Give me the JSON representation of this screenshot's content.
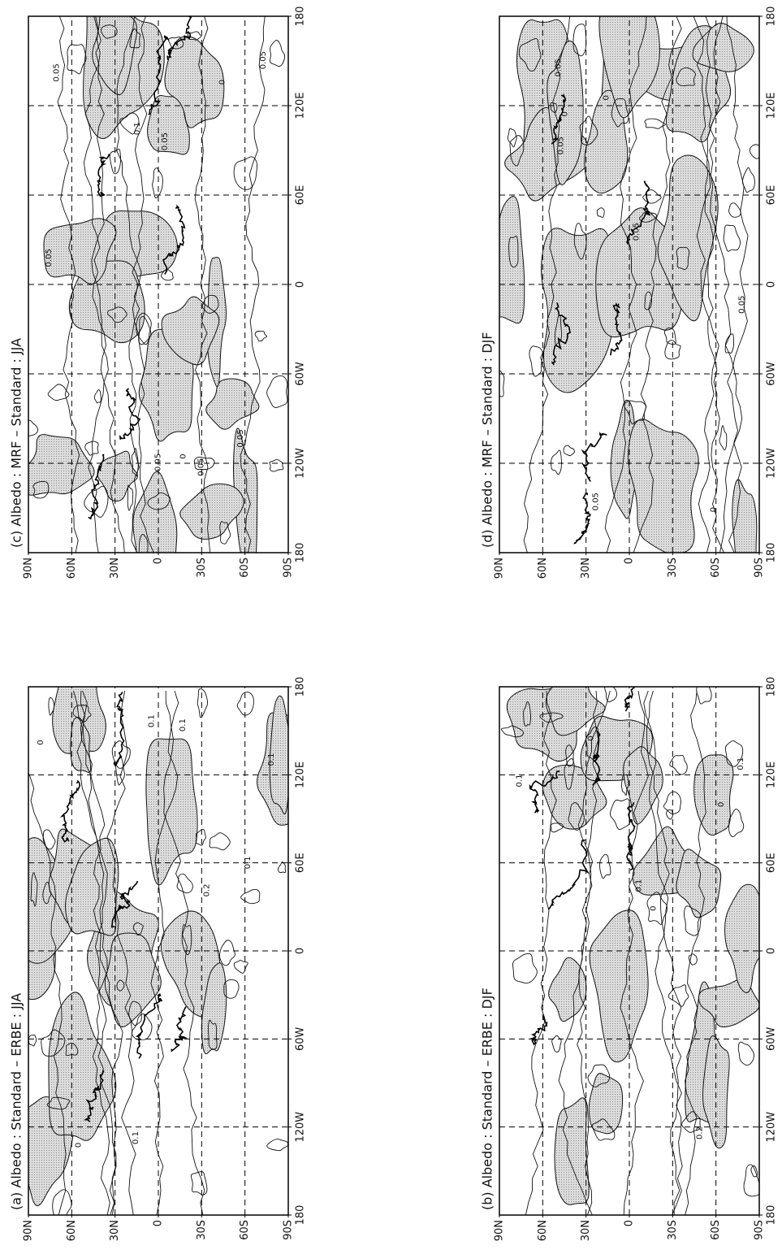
{
  "panels": [
    {
      "title": "(c) Albedo : MRF – Standard : JJA",
      "lat_labels": [
        "90N",
        "60N",
        "30N",
        "0",
        "30S",
        "60S",
        "90S"
      ],
      "lon_labels": [
        "180",
        "120W",
        "60W",
        "0",
        "60E",
        "120E",
        "180"
      ],
      "contour_labels": [
        "0.05",
        "0.05",
        "0.05",
        "0",
        "0.05",
        "0.05",
        "0.05",
        "0.05",
        "0",
        "0.1"
      ]
    },
    {
      "title": "(d) Albedo : MRF – Standard : DJF",
      "lat_labels": [
        "90N",
        "60N",
        "30N",
        "0",
        "30S",
        "60S",
        "90S"
      ],
      "lon_labels": [
        "180",
        "120W",
        "60W",
        "0",
        "60E",
        "120E",
        "180"
      ],
      "contour_labels": [
        "0",
        "0.05",
        "0.05",
        "0.05",
        "0",
        "0",
        "0.05",
        "0.05"
      ]
    },
    {
      "title": "(a) Albedo : Standard – ERBE : JJA",
      "lat_labels": [
        "90N",
        "60N",
        "30N",
        "0",
        "30S",
        "60S",
        "90S"
      ],
      "lon_labels": [
        "180",
        "120W",
        "60W",
        "0",
        "60E",
        "120E",
        "180"
      ],
      "contour_labels": [
        "0.1",
        "0.2",
        "0.1",
        "0.1",
        "0.1",
        "0",
        "0.1",
        "0"
      ]
    },
    {
      "title": "(b) Albedo : Standard – ERBE : DJF",
      "lat_labels": [
        "90N",
        "60N",
        "30N",
        "0",
        "30S",
        "60S",
        "90S"
      ],
      "lon_labels": [
        "180",
        "120W",
        "60W",
        "0",
        "60E",
        "120E",
        "180"
      ],
      "contour_labels": [
        "0",
        "0.1",
        "0.2",
        "0",
        "0.1",
        "0.1",
        "0"
      ]
    }
  ]
}
